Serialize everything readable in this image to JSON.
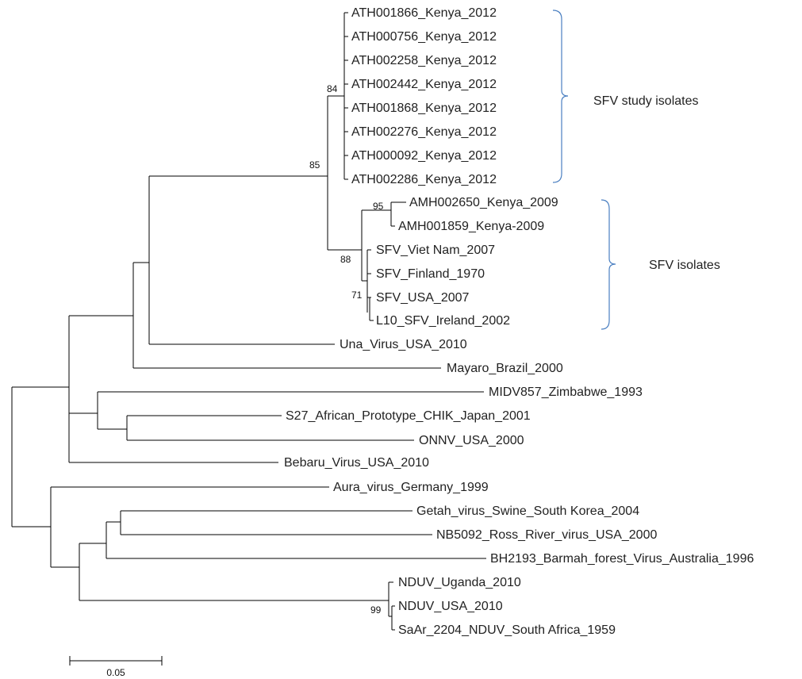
{
  "leaves": [
    "ATH001866_Kenya_2012",
    "ATH000756_Kenya_2012",
    "ATH002258_Kenya_2012",
    "ATH002442_Kenya_2012",
    "ATH001868_Kenya_2012",
    "ATH002276_Kenya_2012",
    "ATH000092_Kenya_2012",
    "ATH002286_Kenya_2012",
    "AMH002650_Kenya_2009",
    "AMH001859_Kenya-2009",
    "SFV_Viet Nam_2007",
    "SFV_Finland_1970",
    "SFV_USA_2007",
    "L10_SFV_Ireland_2002",
    "Una_Virus_USA_2010",
    "Mayaro_Brazil_2000",
    "MIDV857_Zimbabwe_1993",
    "S27_African_Prototype_CHIK_Japan_2001",
    "ONNV_USA_2000",
    "Bebaru_Virus_USA_2010",
    "Aura_virus_Germany_1999",
    "Getah_virus_Swine_South Korea_2004",
    "NB5092_Ross_River_virus_USA_2000",
    "BH2193_Barmah_forest_Virus_Australia_1996",
    "NDUV_Uganda_2010",
    "NDUV_USA_2010",
    "SaAr_2204_NDUV_South Africa_1959"
  ],
  "support_values": {
    "sfv_study": "84",
    "sfv_group": "85",
    "amh_pair": "95",
    "sfv_isolates": "88",
    "sfv_subgroup": "71",
    "nduv": "99"
  },
  "clades": {
    "study": "SFV study isolates",
    "isolates": "SFV isolates",
    "color": "#4a7fc1"
  },
  "scale_bar": {
    "label": "0.05",
    "value": 0.05
  }
}
